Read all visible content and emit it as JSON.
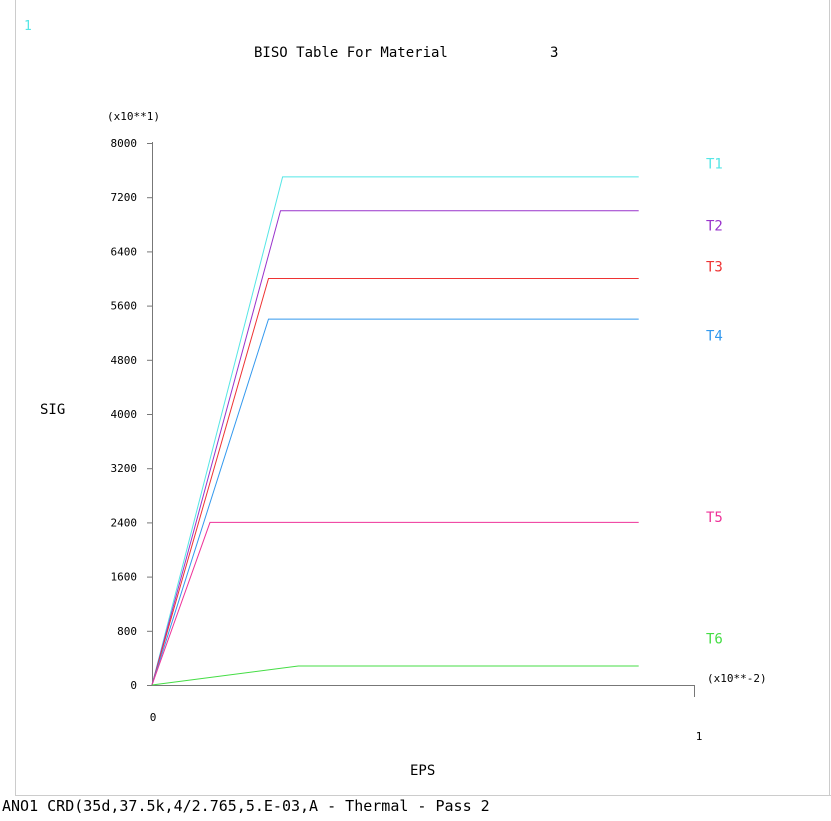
{
  "window_number": "1",
  "footer_text": "ANO1 CRD(35d,37.5k,4/2.765,5.E-03,A - Thermal - Pass 2",
  "colors": {
    "T1": "#55e6e6",
    "T2": "#9933cc",
    "T3": "#ee3333",
    "T4": "#3399ee",
    "T5": "#ee3399",
    "T6": "#44dd44",
    "axis": "#777777",
    "text": "#000000"
  },
  "chart_data": {
    "type": "line",
    "title": "BISO Table For Material",
    "material_number": "3",
    "xlabel": "EPS",
    "ylabel": "SIG",
    "x_multiplier": "(x10**-2)",
    "y_multiplier": "(x10**1)",
    "xlim": [
      0,
      1
    ],
    "ylim": [
      0,
      8000
    ],
    "x_tick_labels": [
      "0",
      "1"
    ],
    "y_ticks": [
      0,
      800,
      1600,
      2400,
      3200,
      4000,
      4800,
      5600,
      6400,
      7200,
      8000
    ],
    "y_tick_labels": [
      "0",
      "800",
      "1600",
      "2400",
      "3200",
      "4000",
      "4800",
      "5600",
      "6400",
      "7200",
      "8000"
    ],
    "grid": false,
    "legend": "right",
    "series": [
      {
        "name": "T1",
        "x": [
          0,
          0.241,
          0.898
        ],
        "y": [
          0,
          7500,
          7500
        ]
      },
      {
        "name": "T2",
        "x": [
          0,
          0.237,
          0.898
        ],
        "y": [
          0,
          7000,
          7000
        ]
      },
      {
        "name": "T3",
        "x": [
          0,
          0.215,
          0.898
        ],
        "y": [
          0,
          6000,
          6000
        ]
      },
      {
        "name": "T4",
        "x": [
          0,
          0.215,
          0.898
        ],
        "y": [
          0,
          5400,
          5400
        ]
      },
      {
        "name": "T5",
        "x": [
          0,
          0.107,
          0.898
        ],
        "y": [
          0,
          2400,
          2400
        ]
      },
      {
        "name": "T6",
        "x": [
          0,
          0.27,
          0.898
        ],
        "y": [
          0,
          280,
          280
        ]
      }
    ],
    "legend_label_values": [
      7700,
      6780,
      6180,
      5160,
      2480,
      690
    ]
  }
}
